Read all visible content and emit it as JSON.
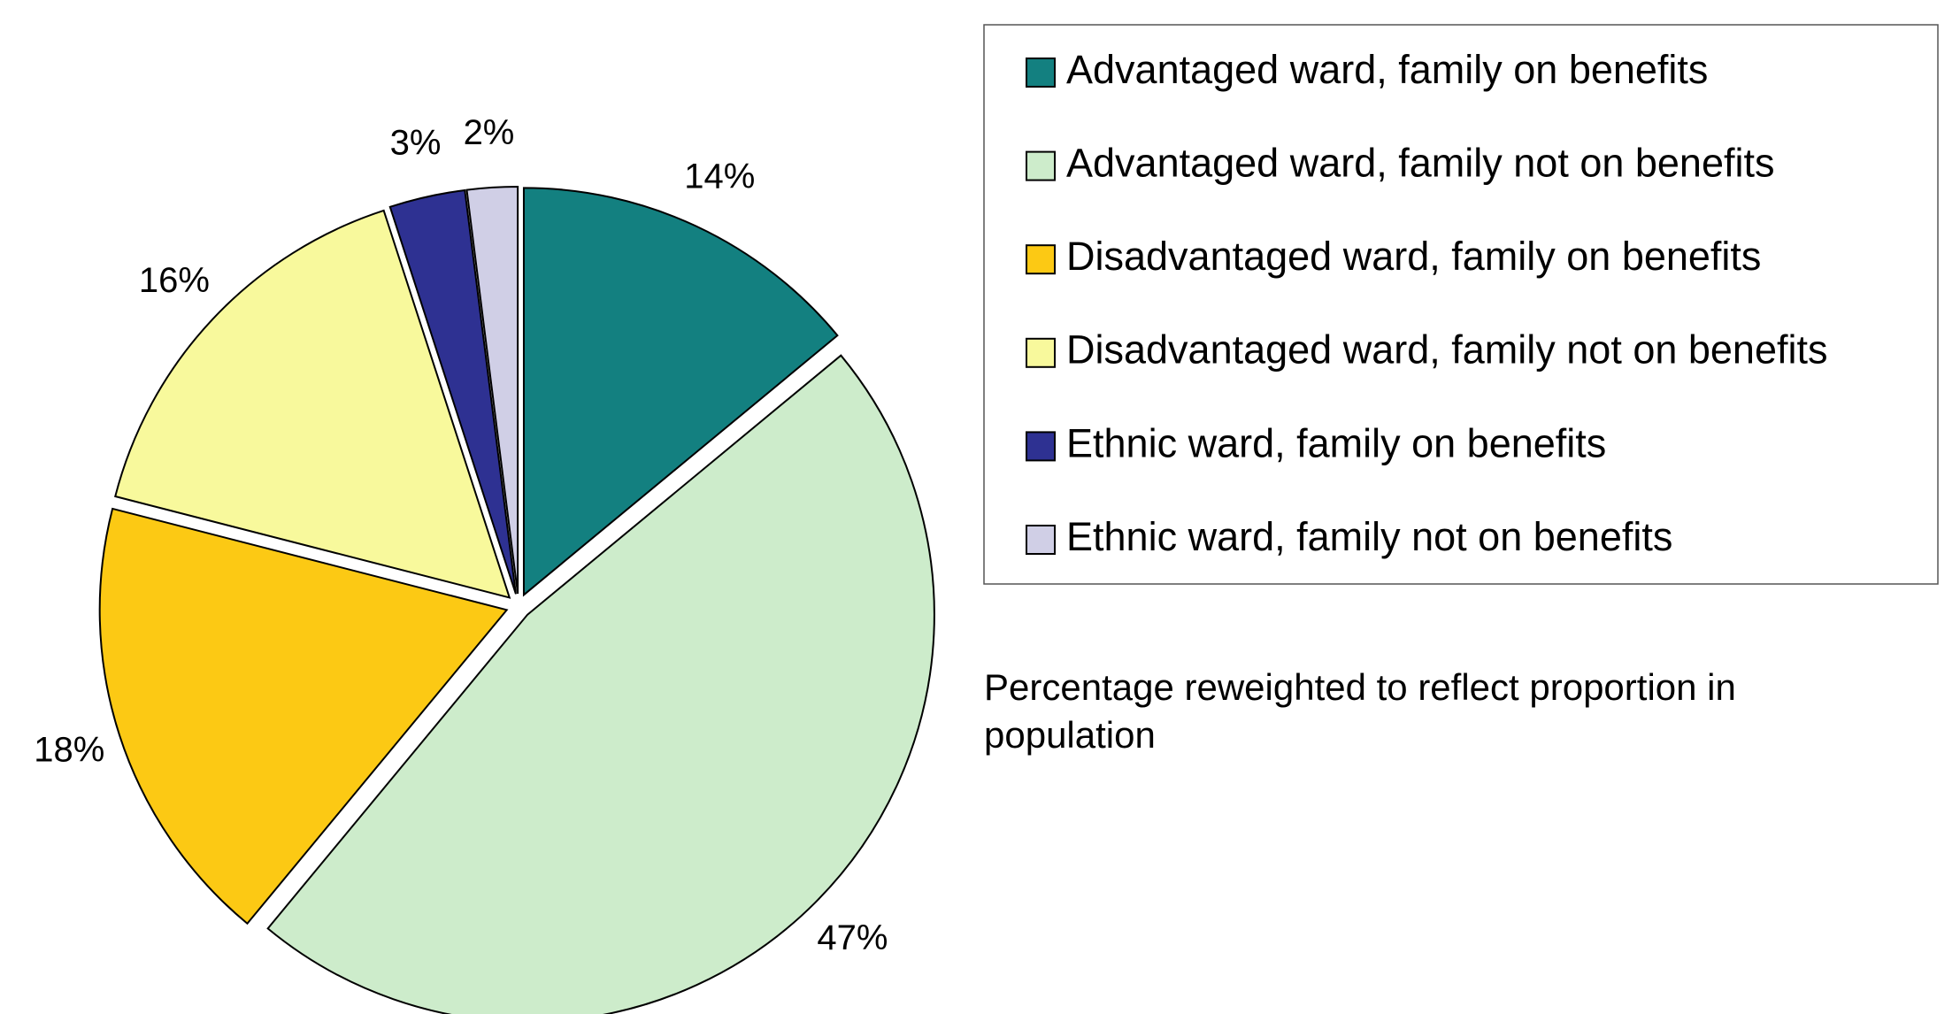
{
  "chart_data": {
    "type": "pie",
    "categories": [
      "Advantaged ward, family on benefits",
      "Advantaged ward, family not on benefits",
      "Disadvantaged ward, family on benefits",
      "Disadvantaged ward, family not on benefits",
      "Ethnic ward, family on benefits",
      "Ethnic ward, family not on benefits"
    ],
    "values": [
      14,
      47,
      18,
      16,
      3,
      2
    ],
    "value_labels": [
      "14%",
      "47%",
      "18%",
      "16%",
      "3%",
      "2%"
    ],
    "colors": [
      "#138080",
      "#cdeccb",
      "#fcc914",
      "#f8f99c",
      "#2e3192",
      "#d0cfe6"
    ],
    "legend": "right",
    "annotation": "Percentage reweighted to reflect proportion in population"
  }
}
